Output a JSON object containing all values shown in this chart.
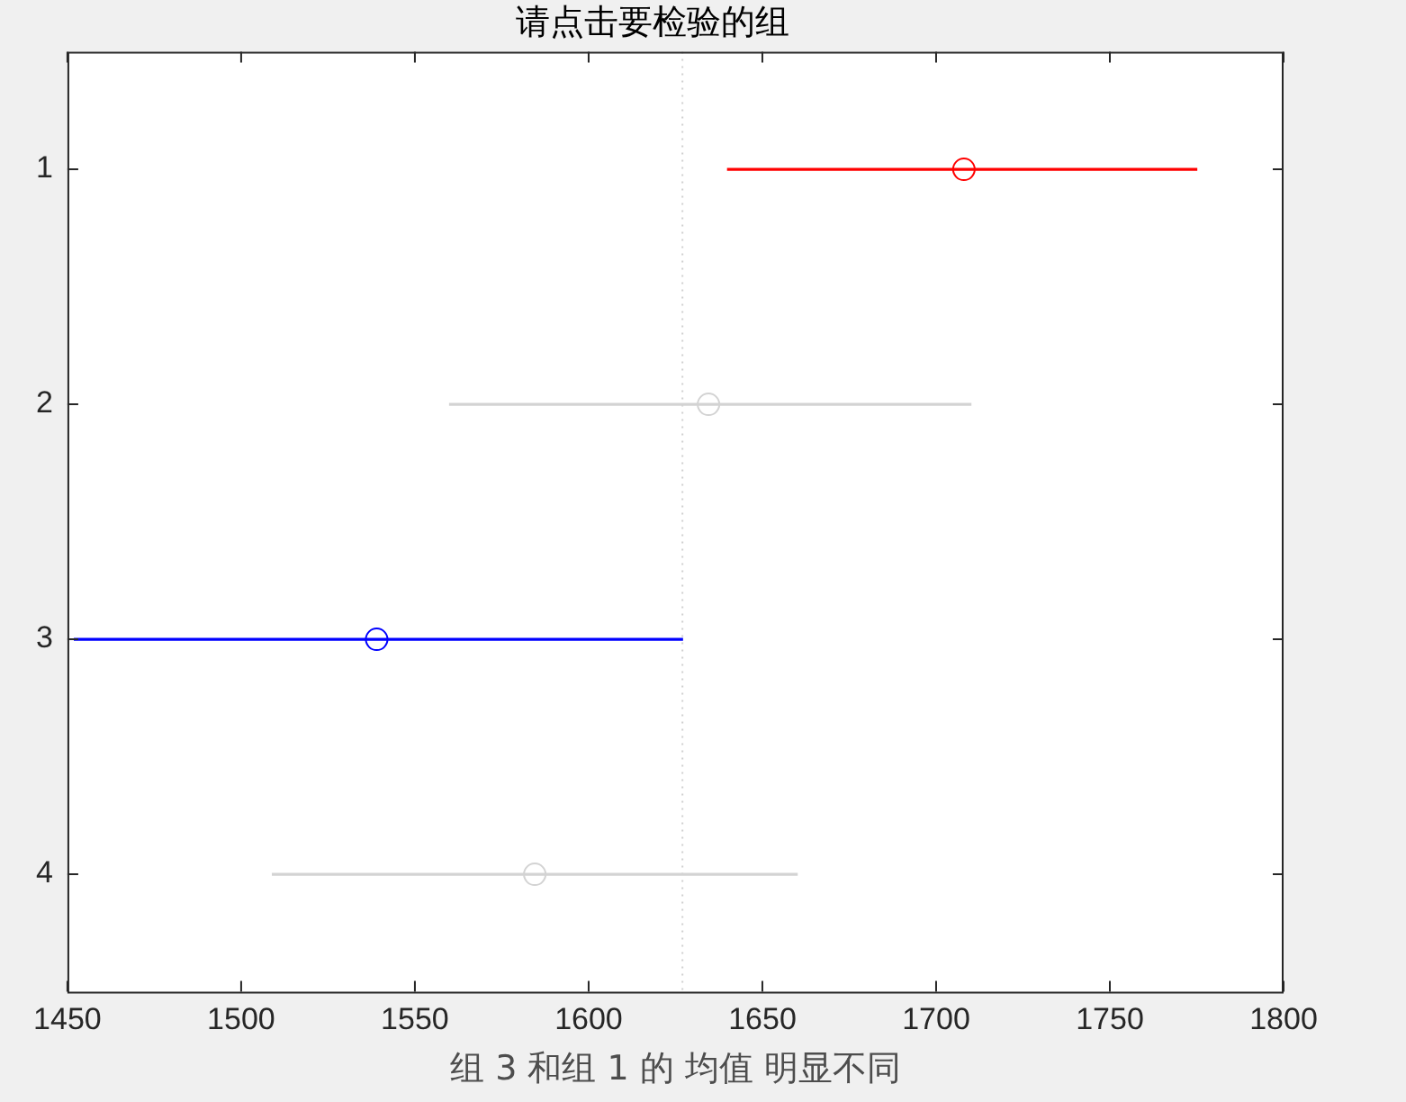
{
  "chart_data": {
    "type": "bar",
    "orientation": "horizontal",
    "title": "请点击要检验的组",
    "xlabel": "组 3 和组 1 的 均值 明显不同",
    "categories": [
      "1",
      "2",
      "3",
      "4"
    ],
    "series": [
      {
        "base": [
          1640,
          1560,
          1452,
          1509
        ],
        "values": [
          135,
          150,
          175,
          151
        ],
        "colors": [
          "#ff0000",
          "#d3d3d3",
          "#0000ff",
          "#d3d3d3"
        ]
      },
      {
        "type": "scatter",
        "x": [
          "1",
          "2",
          "3",
          "4"
        ],
        "values": [
          1708,
          1634.5,
          1539,
          1584.5
        ],
        "colors": [
          "#ff0000",
          "#d3d3d3",
          "#0000ff",
          "#d3d3d3"
        ],
        "marker": "circle"
      }
    ],
    "xlim": [
      1450,
      1800
    ],
    "xticks": [
      1450,
      1500,
      1550,
      1600,
      1650,
      1700,
      1750,
      1800
    ],
    "ref_lines": [
      {
        "axis": "x",
        "value": 1627,
        "color": "#d0d0d0",
        "line_style": "dotted"
      }
    ],
    "grid": false,
    "legend": false
  }
}
